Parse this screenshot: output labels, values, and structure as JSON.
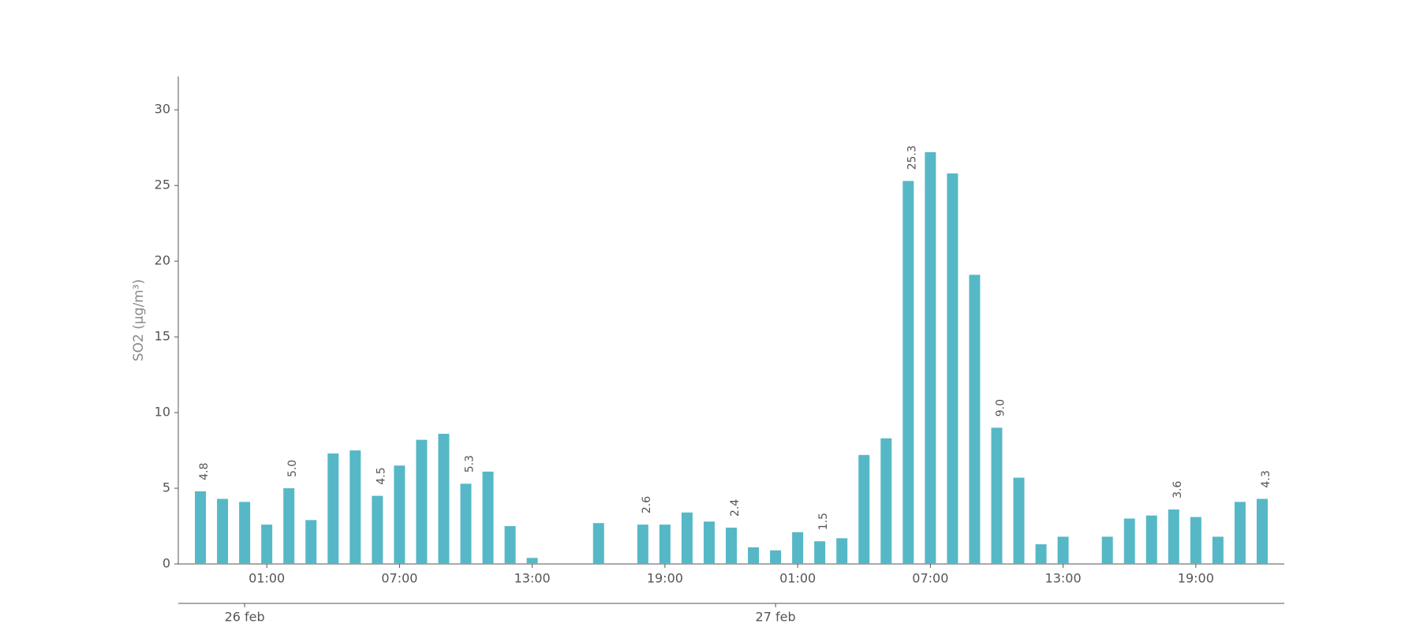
{
  "chart_data": {
    "type": "bar",
    "y_label": "SO2 (μg/m³)",
    "categories": [
      null,
      null,
      null,
      "01:00",
      null,
      null,
      null,
      null,
      null,
      "07:00",
      null,
      null,
      null,
      null,
      null,
      "13:00",
      null,
      null,
      null,
      null,
      null,
      "19:00",
      null,
      null,
      null,
      null,
      null,
      "01:00",
      null,
      null,
      null,
      null,
      null,
      "07:00",
      null,
      null,
      null,
      null,
      null,
      "13:00",
      null,
      null,
      null,
      null,
      null,
      "19:00",
      null,
      null,
      null
    ],
    "date_categories": [
      null,
      null,
      "26 feb",
      null,
      null,
      null,
      null,
      null,
      null,
      null,
      null,
      null,
      null,
      null,
      null,
      null,
      null,
      null,
      null,
      null,
      null,
      null,
      null,
      null,
      null,
      null,
      "27 feb",
      null,
      null,
      null,
      null,
      null,
      null,
      null,
      null,
      null,
      null,
      null,
      null,
      null,
      null,
      null,
      null,
      null,
      null,
      null,
      null,
      null,
      null
    ],
    "values": [
      4.8,
      4.3,
      4.1,
      2.6,
      5.0,
      2.9,
      7.3,
      7.5,
      4.5,
      6.5,
      8.2,
      8.6,
      5.3,
      6.1,
      2.5,
      0.4,
      null,
      null,
      2.7,
      null,
      2.6,
      2.6,
      3.4,
      2.8,
      2.4,
      1.1,
      0.9,
      2.1,
      1.5,
      1.7,
      7.2,
      8.3,
      25.3,
      27.2,
      25.8,
      19.1,
      9.0,
      5.7,
      1.3,
      1.8,
      null,
      1.8,
      3.0,
      3.2,
      3.6,
      3.1,
      1.8,
      4.1,
      4.3
    ],
    "value_labels": [
      "4.8",
      null,
      null,
      null,
      "5.0",
      null,
      null,
      null,
      "4.5",
      null,
      null,
      null,
      "5.3",
      null,
      null,
      null,
      null,
      null,
      null,
      null,
      "2.6",
      null,
      null,
      null,
      "2.4",
      null,
      null,
      null,
      "1.5",
      null,
      null,
      null,
      "25.3",
      null,
      null,
      null,
      "9.0",
      null,
      null,
      null,
      null,
      null,
      null,
      null,
      "3.6",
      null,
      null,
      null,
      "4.3"
    ],
    "color": "#56b8c6",
    "ylim": [
      0,
      32.2
    ],
    "yticks": [
      0,
      5,
      10,
      15,
      20,
      25,
      30
    ],
    "grid": false
  }
}
